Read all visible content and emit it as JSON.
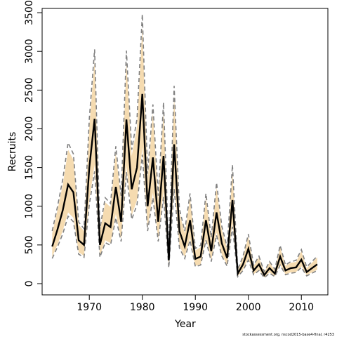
{
  "chart_data": {
    "type": "line",
    "xlabel": "Year",
    "ylabel": "Recruits",
    "footnote": "stockassessment.org, nscod2015-base4-final, r4253",
    "x": [
      1963,
      1964,
      1965,
      1966,
      1967,
      1968,
      1969,
      1970,
      1971,
      1972,
      1973,
      1974,
      1975,
      1976,
      1977,
      1978,
      1979,
      1980,
      1981,
      1982,
      1983,
      1984,
      1985,
      1986,
      1987,
      1988,
      1989,
      1990,
      1991,
      1992,
      1993,
      1994,
      1995,
      1996,
      1997,
      1998,
      1999,
      2000,
      2001,
      2002,
      2003,
      2004,
      2005,
      2006,
      2007,
      2008,
      2009,
      2010,
      2011,
      2012,
      2013
    ],
    "series": [
      {
        "band": true,
        "color": "#f5dbb0",
        "upper": [
          650,
          950,
          1280,
          1730,
          1600,
          760,
          680,
          2030,
          2880,
          680,
          1050,
          990,
          1690,
          1080,
          2860,
          1650,
          2030,
          3310,
          1350,
          2200,
          1080,
          2230,
          405,
          2430,
          920,
          650,
          1110,
          430,
          470,
          1110,
          570,
          1240,
          700,
          450,
          1460,
          175,
          340,
          610,
          230,
          340,
          150,
          270,
          175,
          470,
          230,
          270,
          280,
          420,
          200,
          270,
          340
        ],
        "lower": [
          345,
          505,
          685,
          920,
          850,
          405,
          360,
          1080,
          1535,
          360,
          560,
          525,
          900,
          575,
          1525,
          880,
          1080,
          1765,
          720,
          1175,
          575,
          1190,
          215,
          1295,
          490,
          345,
          590,
          230,
          250,
          590,
          300,
          660,
          375,
          240,
          780,
          95,
          180,
          325,
          120,
          180,
          80,
          145,
          95,
          250,
          120,
          145,
          150,
          225,
          110,
          145,
          180
        ]
      },
      {
        "color": "#808080",
        "dashed": true,
        "values": [
          680,
          995,
          1350,
          1820,
          1675,
          795,
          710,
          2130,
          3025,
          710,
          1110,
          1035,
          1775,
          1135,
          3010,
          1730,
          2130,
          3480,
          1420,
          2315,
          1135,
          2340,
          425,
          2555,
          965,
          680,
          1165,
          455,
          495,
          1165,
          595,
          1305,
          740,
          470,
          1535,
          185,
          355,
          640,
          240,
          355,
          155,
          285,
          185,
          495,
          240,
          285,
          300,
          440,
          215,
          285,
          355
        ]
      },
      {
        "color": "#808080",
        "dashed": true,
        "values": [
          325,
          475,
          645,
          870,
          800,
          380,
          340,
          1020,
          1450,
          340,
          530,
          495,
          850,
          545,
          1440,
          830,
          1020,
          1665,
          680,
          1110,
          545,
          1120,
          205,
          1225,
          460,
          325,
          560,
          220,
          240,
          560,
          285,
          625,
          355,
          225,
          735,
          90,
          170,
          305,
          115,
          170,
          75,
          135,
          90,
          240,
          115,
          135,
          145,
          210,
          100,
          135,
          170
        ]
      },
      {
        "color": "#000000",
        "dashed": false,
        "values": [
          480,
          700,
          950,
          1280,
          1180,
          560,
          500,
          1500,
          2130,
          500,
          780,
          730,
          1250,
          800,
          2120,
          1220,
          1500,
          2450,
          1000,
          1630,
          800,
          1650,
          300,
          1800,
          680,
          480,
          820,
          320,
          350,
          820,
          420,
          920,
          520,
          330,
          1080,
          130,
          250,
          450,
          170,
          250,
          110,
          200,
          130,
          350,
          170,
          200,
          210,
          310,
          150,
          200,
          250
        ]
      }
    ],
    "xlim": [
      1961.1,
      2015.0
    ],
    "ylim": [
      -145,
      3555
    ],
    "xticks": [
      1970,
      1980,
      1990,
      2000,
      2010
    ],
    "yticks": [
      0,
      500,
      1000,
      1500,
      2000,
      2500,
      3000,
      3500
    ]
  }
}
